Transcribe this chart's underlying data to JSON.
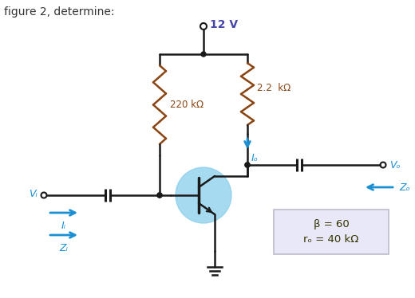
{
  "title_text": "figure 2, determine:",
  "supply_label": "12 V",
  "r1_label": "220 kΩ",
  "r2_label": "2.2  kΩ",
  "io_label": "Iₒ",
  "vo_label": "Vₒ",
  "vi_label": "Vᵢ",
  "ii_label": "Iᵢ",
  "zi_label": "Zᵢ",
  "zo_label": "Zₒ",
  "beta_label": "β = 60",
  "ro_label": "rₒ = 40 kΩ",
  "bg_color": "#ffffff",
  "line_color": "#1a1a1a",
  "blue_color": "#1a90d4",
  "resistor_color": "#8B4513",
  "transistor_fill": "#87CEEB",
  "supply_color": "#4444aa",
  "label_color": "#5a5a00",
  "box_fill": "#e8e8f8",
  "box_edge": "#bbbbcc"
}
